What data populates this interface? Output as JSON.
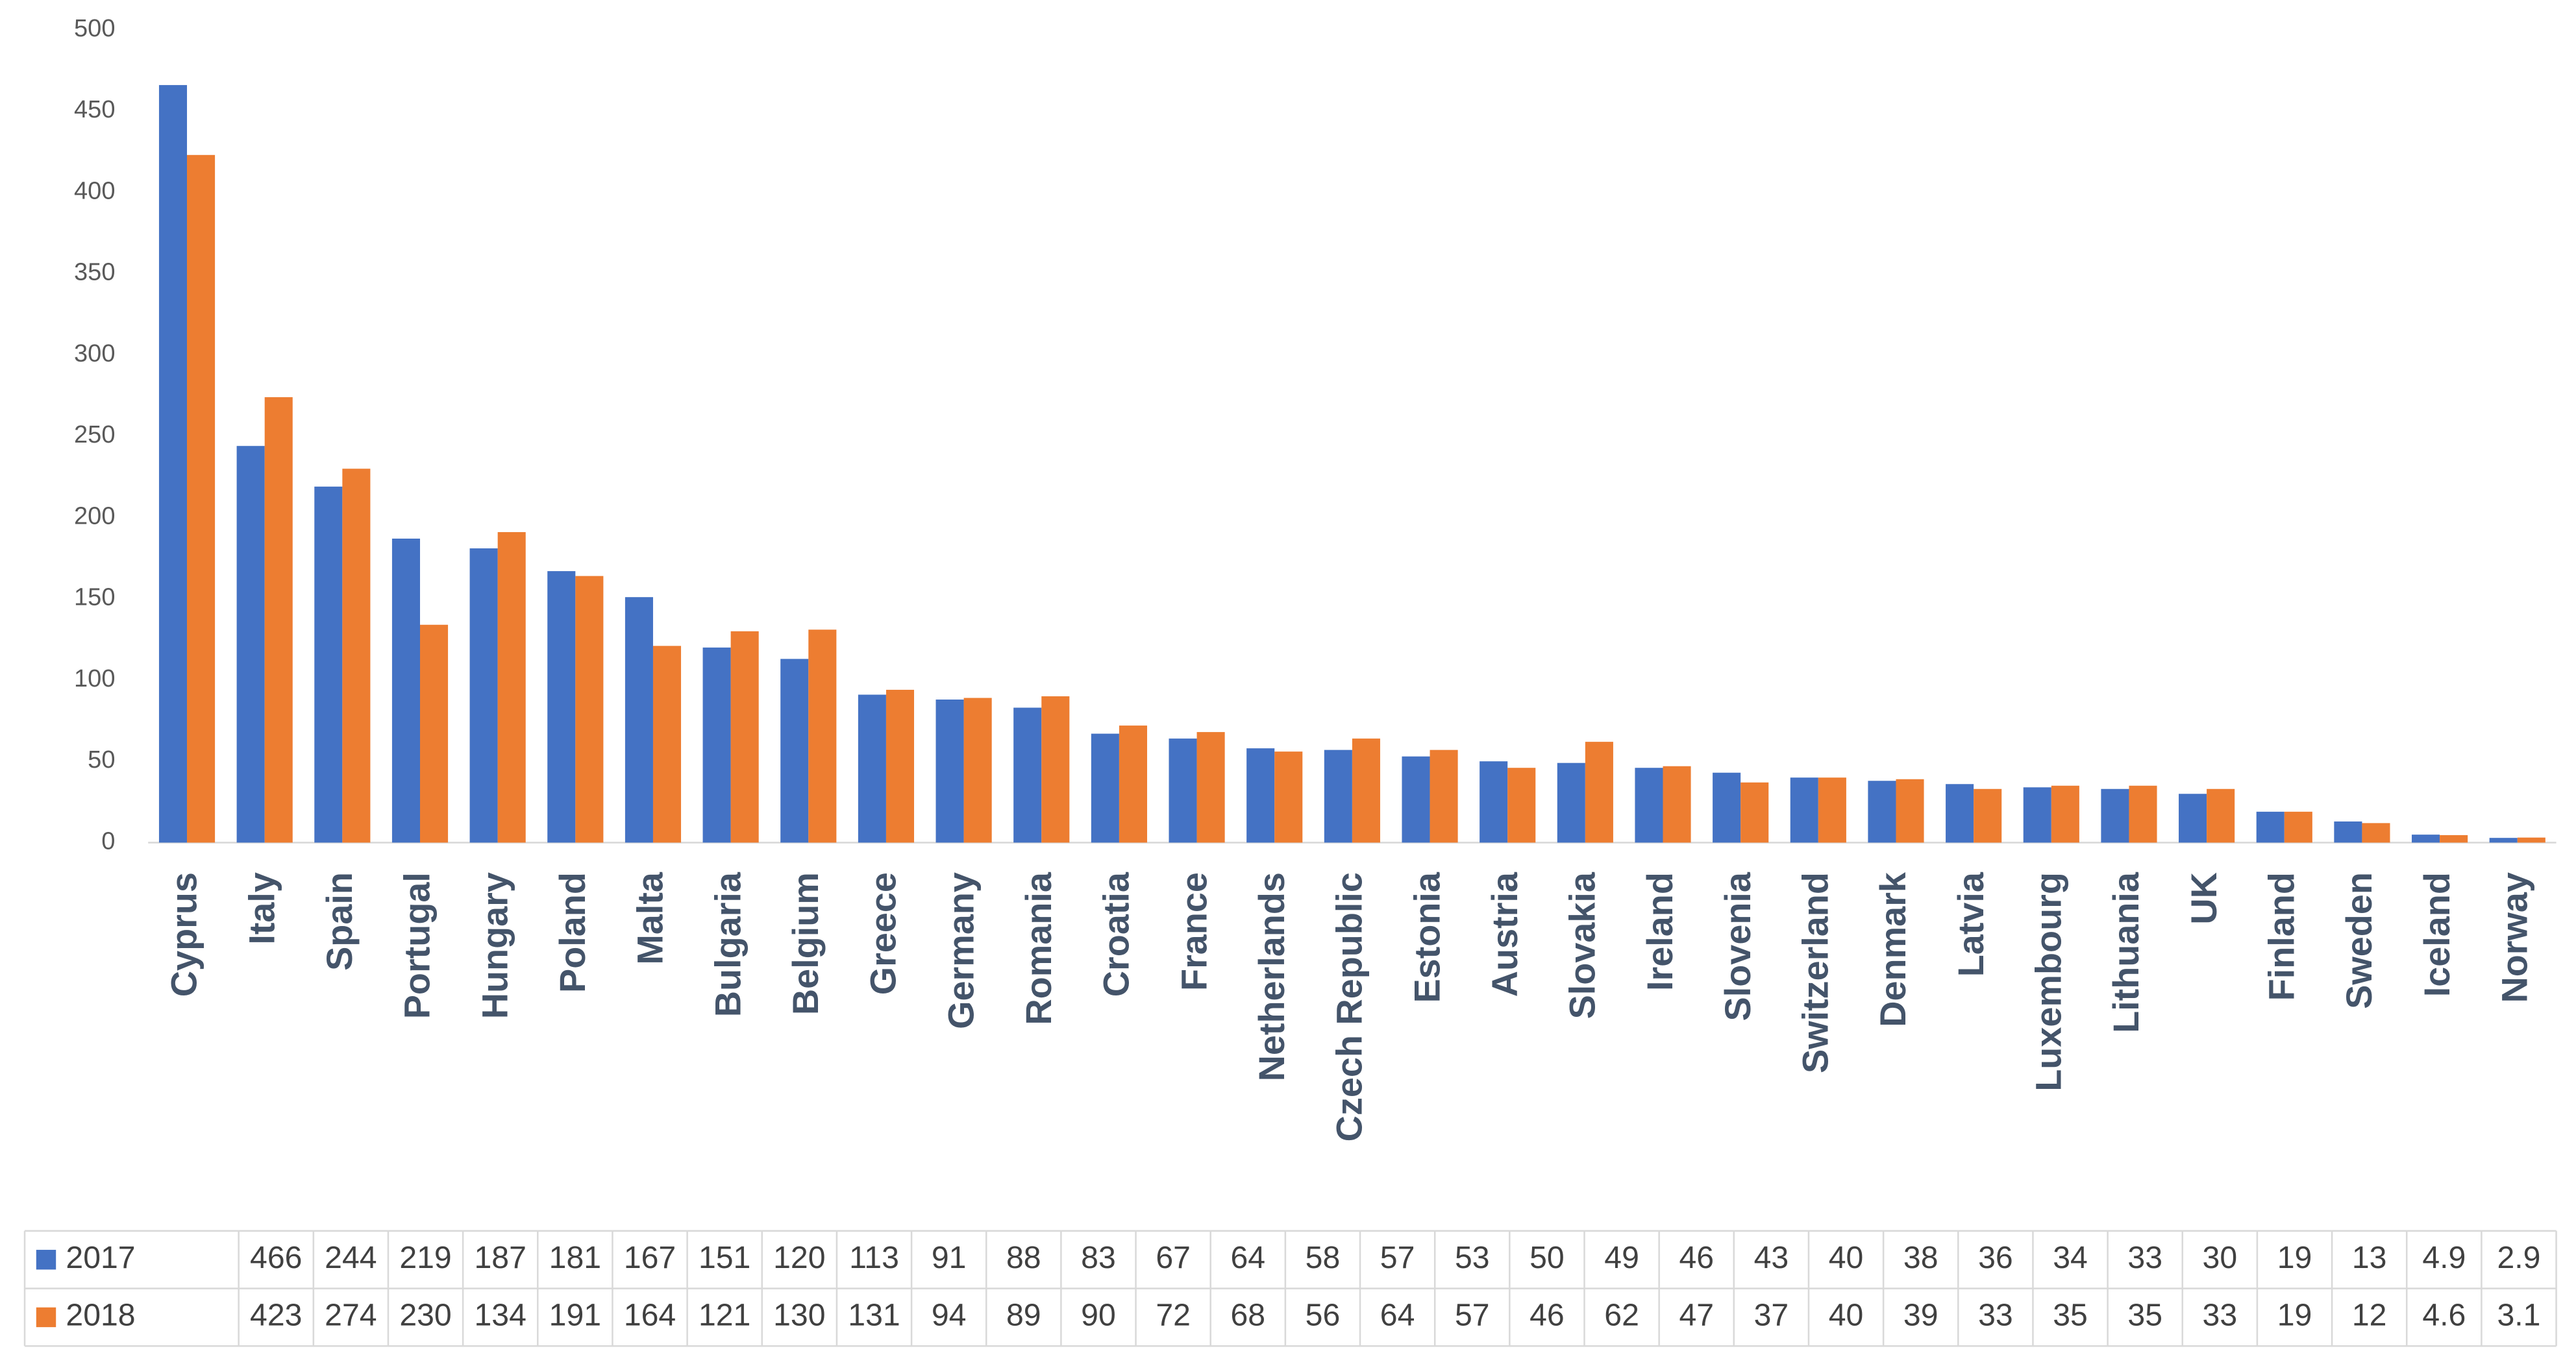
{
  "chart_data": {
    "type": "bar",
    "categories": [
      "Cyprus",
      "Italy",
      "Spain",
      "Portugal",
      "Hungary",
      "Poland",
      "Malta",
      "Bulgaria",
      "Belgium",
      "Greece",
      "Germany",
      "Romania",
      "Croatia",
      "France",
      "Netherlands",
      "Czech Republic",
      "Estonia",
      "Austria",
      "Slovakia",
      "Ireland",
      "Slovenia",
      "Switzerland",
      "Denmark",
      "Latvia",
      "Luxembourg",
      "Lithuania",
      "UK",
      "Finland",
      "Sweden",
      "Iceland",
      "Norway"
    ],
    "series": [
      {
        "name": "2017",
        "color": "#4472c4",
        "values": [
          466,
          244,
          219,
          187,
          181,
          167,
          151,
          120,
          113,
          91,
          88,
          83,
          67,
          64,
          58,
          57,
          53,
          50,
          49,
          46,
          43,
          40,
          38,
          36,
          34,
          33,
          30,
          19,
          13,
          4.9,
          2.9
        ]
      },
      {
        "name": "2018",
        "color": "#ed7d31",
        "values": [
          423,
          274,
          230,
          134,
          191,
          164,
          121,
          130,
          131,
          94,
          89,
          90,
          72,
          68,
          56,
          64,
          57,
          46,
          62,
          47,
          37,
          40,
          39,
          33,
          35,
          35,
          33,
          19,
          12,
          4.6,
          3.1
        ]
      }
    ],
    "ylim": [
      0,
      500
    ],
    "yticks": [
      0,
      50,
      100,
      150,
      200,
      250,
      300,
      350,
      400,
      450,
      500
    ],
    "grid": false
  }
}
